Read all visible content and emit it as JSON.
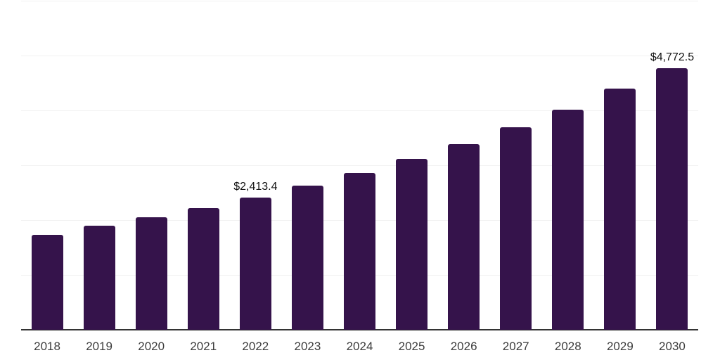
{
  "chart_data": {
    "type": "bar",
    "title": "",
    "xlabel": "",
    "ylabel": "",
    "categories": [
      "2018",
      "2019",
      "2020",
      "2021",
      "2022",
      "2023",
      "2024",
      "2025",
      "2026",
      "2027",
      "2028",
      "2029",
      "2030"
    ],
    "values": [
      1732.0,
      1898.7,
      2052.7,
      2219.5,
      2413.4,
      2630.0,
      2861.0,
      3117.5,
      3386.9,
      3694.8,
      4015.6,
      4400.4,
      4772.5
    ],
    "value_labels": {
      "2022": "$2,413.4",
      "2030": "$4,772.5"
    },
    "ylim": [
      0,
      6000
    ],
    "gridline_interval": 1000,
    "grid": "horizontal",
    "y_axis_labels_visible": false,
    "legend": "none",
    "colors": {
      "bar": "#35134b",
      "axis_line": "#333333",
      "gridline": "#f2f2f2",
      "tick_label": "#3c3c3c",
      "value_label": "#111111",
      "background": "#ffffff"
    }
  }
}
